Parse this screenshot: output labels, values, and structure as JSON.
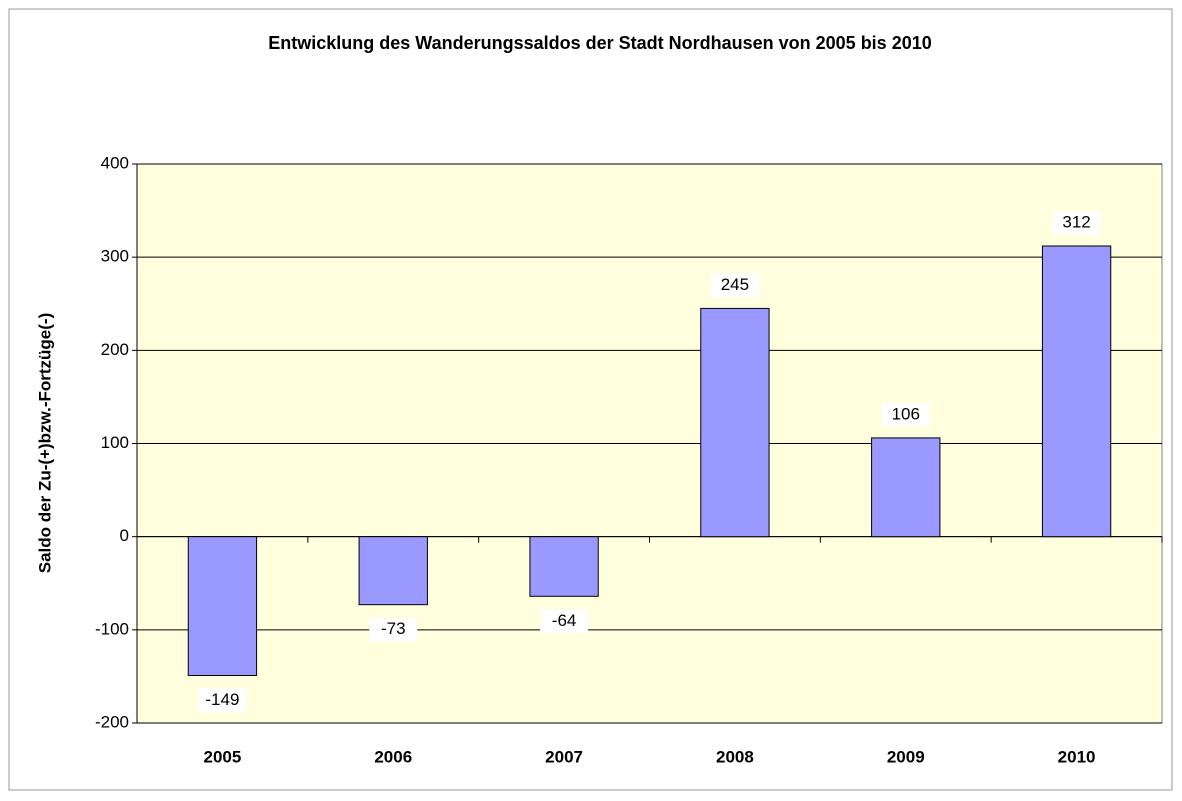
{
  "chart_data": {
    "type": "bar",
    "title": "Entwicklung des Wanderungssaldos der Stadt Nordhausen von 2005 bis 2010",
    "y_label": "Saldo der Zu-(+)bzw.-Fortzüge(-)",
    "categories": [
      "2005",
      "2006",
      "2007",
      "2008",
      "2009",
      "2010"
    ],
    "values": [
      -149,
      -73,
      -64,
      245,
      106,
      312
    ],
    "color": "#9999ff",
    "ylim": [
      -200,
      400
    ],
    "yticks": [
      -200,
      -100,
      0,
      100,
      200,
      300,
      400
    ],
    "grid": true
  }
}
